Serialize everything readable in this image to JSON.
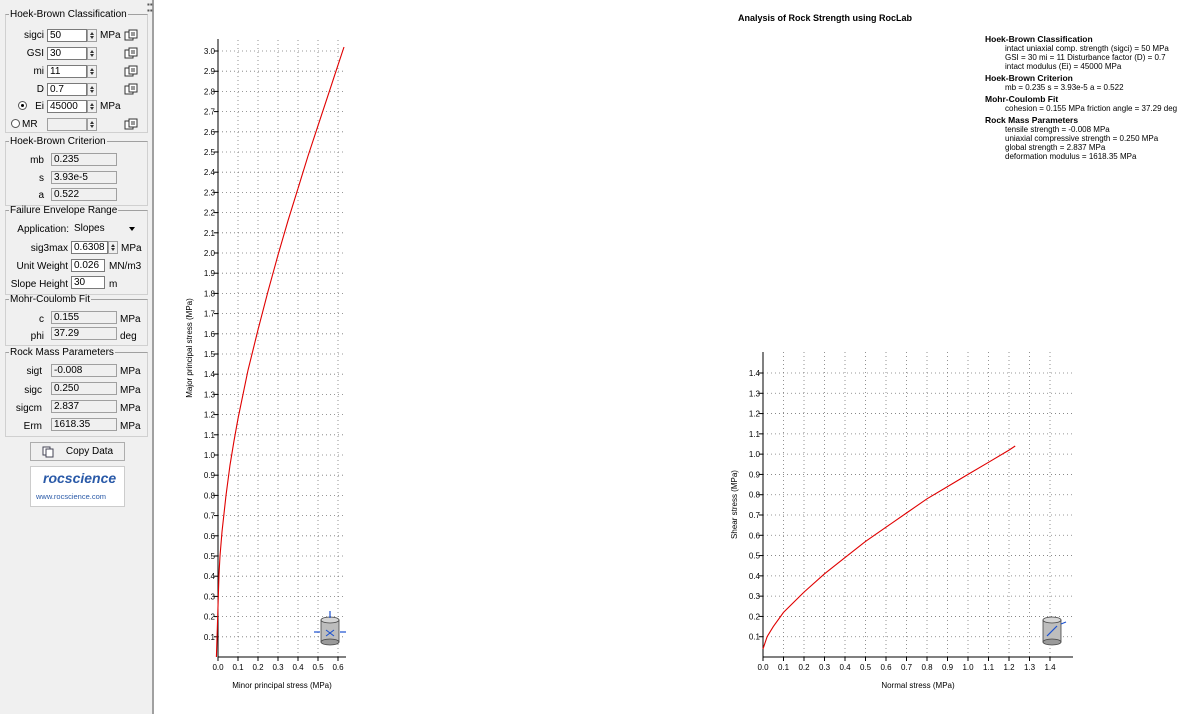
{
  "panel": {
    "hb_classification": {
      "title": "Hoek-Brown Classification",
      "sigci": {
        "label": "sigci",
        "value": "50",
        "unit": "MPa"
      },
      "gsi": {
        "label": "GSI",
        "value": "30"
      },
      "mi": {
        "label": "mi",
        "value": "11"
      },
      "d": {
        "label": "D",
        "value": "0.7"
      },
      "ei": {
        "label": "Ei",
        "value": "45000",
        "unit": "MPa"
      },
      "mr": {
        "label": "MR",
        "value": ""
      }
    },
    "hb_criterion": {
      "title": "Hoek-Brown Criterion",
      "mb": {
        "label": "mb",
        "value": "0.235"
      },
      "s": {
        "label": "s",
        "value": "3.93e-5"
      },
      "a": {
        "label": "a",
        "value": "0.522"
      }
    },
    "failure_envelope": {
      "title": "Failure Envelope Range",
      "application": {
        "label": "Application:",
        "value": "Slopes"
      },
      "sig3max": {
        "label": "sig3max",
        "value": "0.6308",
        "unit": "MPa"
      },
      "unit_weight": {
        "label": "Unit Weight",
        "value": "0.026",
        "unit": "MN/m3"
      },
      "slope_height": {
        "label": "Slope Height",
        "value": "30",
        "unit": "m"
      }
    },
    "mohr_coulomb": {
      "title": "Mohr-Coulomb Fit",
      "c": {
        "label": "c",
        "value": "0.155",
        "unit": "MPa"
      },
      "phi": {
        "label": "phi",
        "value": "37.29",
        "unit": "deg"
      }
    },
    "rock_mass": {
      "title": "Rock Mass Parameters",
      "sigt": {
        "label": "sigt",
        "value": "-0.008",
        "unit": "MPa"
      },
      "sigc": {
        "label": "sigc",
        "value": "0.250",
        "unit": "MPa"
      },
      "sigcm": {
        "label": "sigcm",
        "value": "2.837",
        "unit": "MPa"
      },
      "erm": {
        "label": "Erm",
        "value": "1618.35",
        "unit": "MPa"
      }
    },
    "copy_button": "Copy Data",
    "logo": {
      "word": "rocscience",
      "url": "www.rocscience.com"
    }
  },
  "report": {
    "title": "Analysis of Rock Strength using RocLab",
    "sections": [
      {
        "heading": "Hoek-Brown Classification",
        "lines": [
          "intact uniaxial comp. strength (sigci) = 50 MPa",
          "GSI = 30    mi = 11    Disturbance factor (D) = 0.7",
          "intact modulus (Ei) = 45000 MPa"
        ]
      },
      {
        "heading": "Hoek-Brown Criterion",
        "lines": [
          "mb = 0.235    s = 3.93e-5    a = 0.522"
        ]
      },
      {
        "heading": "Mohr-Coulomb Fit",
        "lines": [
          "cohesion = 0.155 MPa    friction angle = 37.29 deg"
        ]
      },
      {
        "heading": "Rock Mass Parameters",
        "lines": [
          "tensile strength = -0.008 MPa",
          "uniaxial compressive strength = 0.250 MPa",
          "global strength = 2.837 MPa",
          "deformation modulus = 1618.35 MPa"
        ]
      }
    ]
  },
  "chart_data": [
    {
      "type": "line",
      "xlabel": "Minor principal stress (MPa)",
      "ylabel": "Major principal stress (MPa)",
      "xlim": [
        0,
        0.65
      ],
      "ylim": [
        0,
        3.05
      ],
      "xticks": [
        0.0,
        0.1,
        0.2,
        0.3,
        0.4,
        0.5,
        0.6
      ],
      "yticks": [
        0.1,
        0.2,
        0.3,
        0.4,
        0.5,
        0.6,
        0.7,
        0.8,
        0.9,
        1.0,
        1.1,
        1.2,
        1.3,
        1.4,
        1.5,
        1.6,
        1.7,
        1.8,
        1.9,
        2.0,
        2.1,
        2.2,
        2.3,
        2.4,
        2.5,
        2.6,
        2.7,
        2.8,
        2.9,
        3.0
      ],
      "grid": true,
      "series": [
        {
          "color": "#e00000",
          "x": [
            -0.008,
            0.0,
            0.005,
            0.01,
            0.02,
            0.04,
            0.06,
            0.08,
            0.1,
            0.15,
            0.2,
            0.25,
            0.3,
            0.35,
            0.4,
            0.45,
            0.5,
            0.55,
            0.6,
            0.63
          ],
          "y": [
            0.0,
            0.25,
            0.41,
            0.5,
            0.62,
            0.8,
            0.95,
            1.07,
            1.18,
            1.42,
            1.62,
            1.81,
            1.99,
            2.16,
            2.32,
            2.48,
            2.63,
            2.78,
            2.93,
            3.02
          ]
        }
      ],
      "icon": "cylinder-sigma-icon"
    },
    {
      "type": "line",
      "xlabel": "Normal stress (MPa)",
      "ylabel": "Shear stress (MPa)",
      "xlim": [
        0,
        1.5
      ],
      "ylim": [
        0,
        1.5
      ],
      "xticks": [
        0.0,
        0.1,
        0.2,
        0.3,
        0.4,
        0.5,
        0.6,
        0.7,
        0.8,
        0.9,
        1.0,
        1.1,
        1.2,
        1.3,
        1.4
      ],
      "yticks": [
        0.1,
        0.2,
        0.3,
        0.4,
        0.5,
        0.6,
        0.7,
        0.8,
        0.9,
        1.0,
        1.1,
        1.2,
        1.3,
        1.4
      ],
      "grid": true,
      "series": [
        {
          "color": "#e00000",
          "x": [
            0.0,
            0.02,
            0.05,
            0.1,
            0.2,
            0.3,
            0.4,
            0.5,
            0.6,
            0.7,
            0.8,
            0.9,
            1.0,
            1.1,
            1.2,
            1.23
          ],
          "y": [
            0.04,
            0.1,
            0.15,
            0.22,
            0.32,
            0.41,
            0.49,
            0.57,
            0.64,
            0.71,
            0.78,
            0.84,
            0.9,
            0.96,
            1.02,
            1.04
          ]
        }
      ],
      "icon": "cylinder-tau-icon"
    }
  ]
}
